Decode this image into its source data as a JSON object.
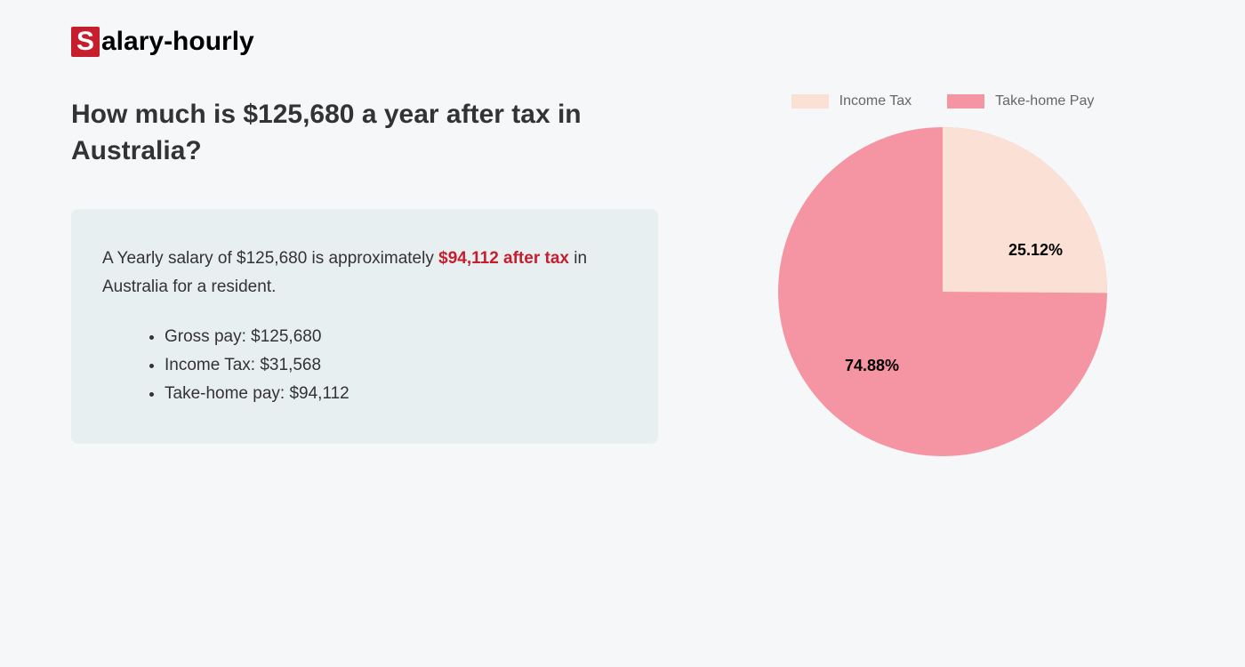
{
  "logo": {
    "first_letter": "S",
    "rest": "alary-hourly",
    "accent_color": "#c71e2e"
  },
  "title": "How much is $125,680 a year after tax in Australia?",
  "info_box": {
    "text_prefix": "A Yearly salary of $125,680 is approximately ",
    "highlight_text": "$94,112 after tax",
    "text_suffix": " in Australia for a resident.",
    "highlight_color": "#c71e2e",
    "background_color": "#e8eff1",
    "list": [
      "Gross pay: $125,680",
      "Income Tax: $31,568",
      "Take-home pay: $94,112"
    ]
  },
  "chart": {
    "type": "pie",
    "legend": [
      {
        "label": "Income Tax",
        "color": "#fbe0d6"
      },
      {
        "label": "Take-home Pay",
        "color": "#f595a3"
      }
    ],
    "slices": [
      {
        "label": "25.12%",
        "value": 25.12,
        "color": "#fbe0d6"
      },
      {
        "label": "74.88%",
        "value": 74.88,
        "color": "#f595a3"
      }
    ],
    "label_fontsize": 18,
    "legend_fontsize": 16,
    "legend_text_color": "#666666",
    "diameter": 370,
    "background_color": "#f5f7f9"
  }
}
